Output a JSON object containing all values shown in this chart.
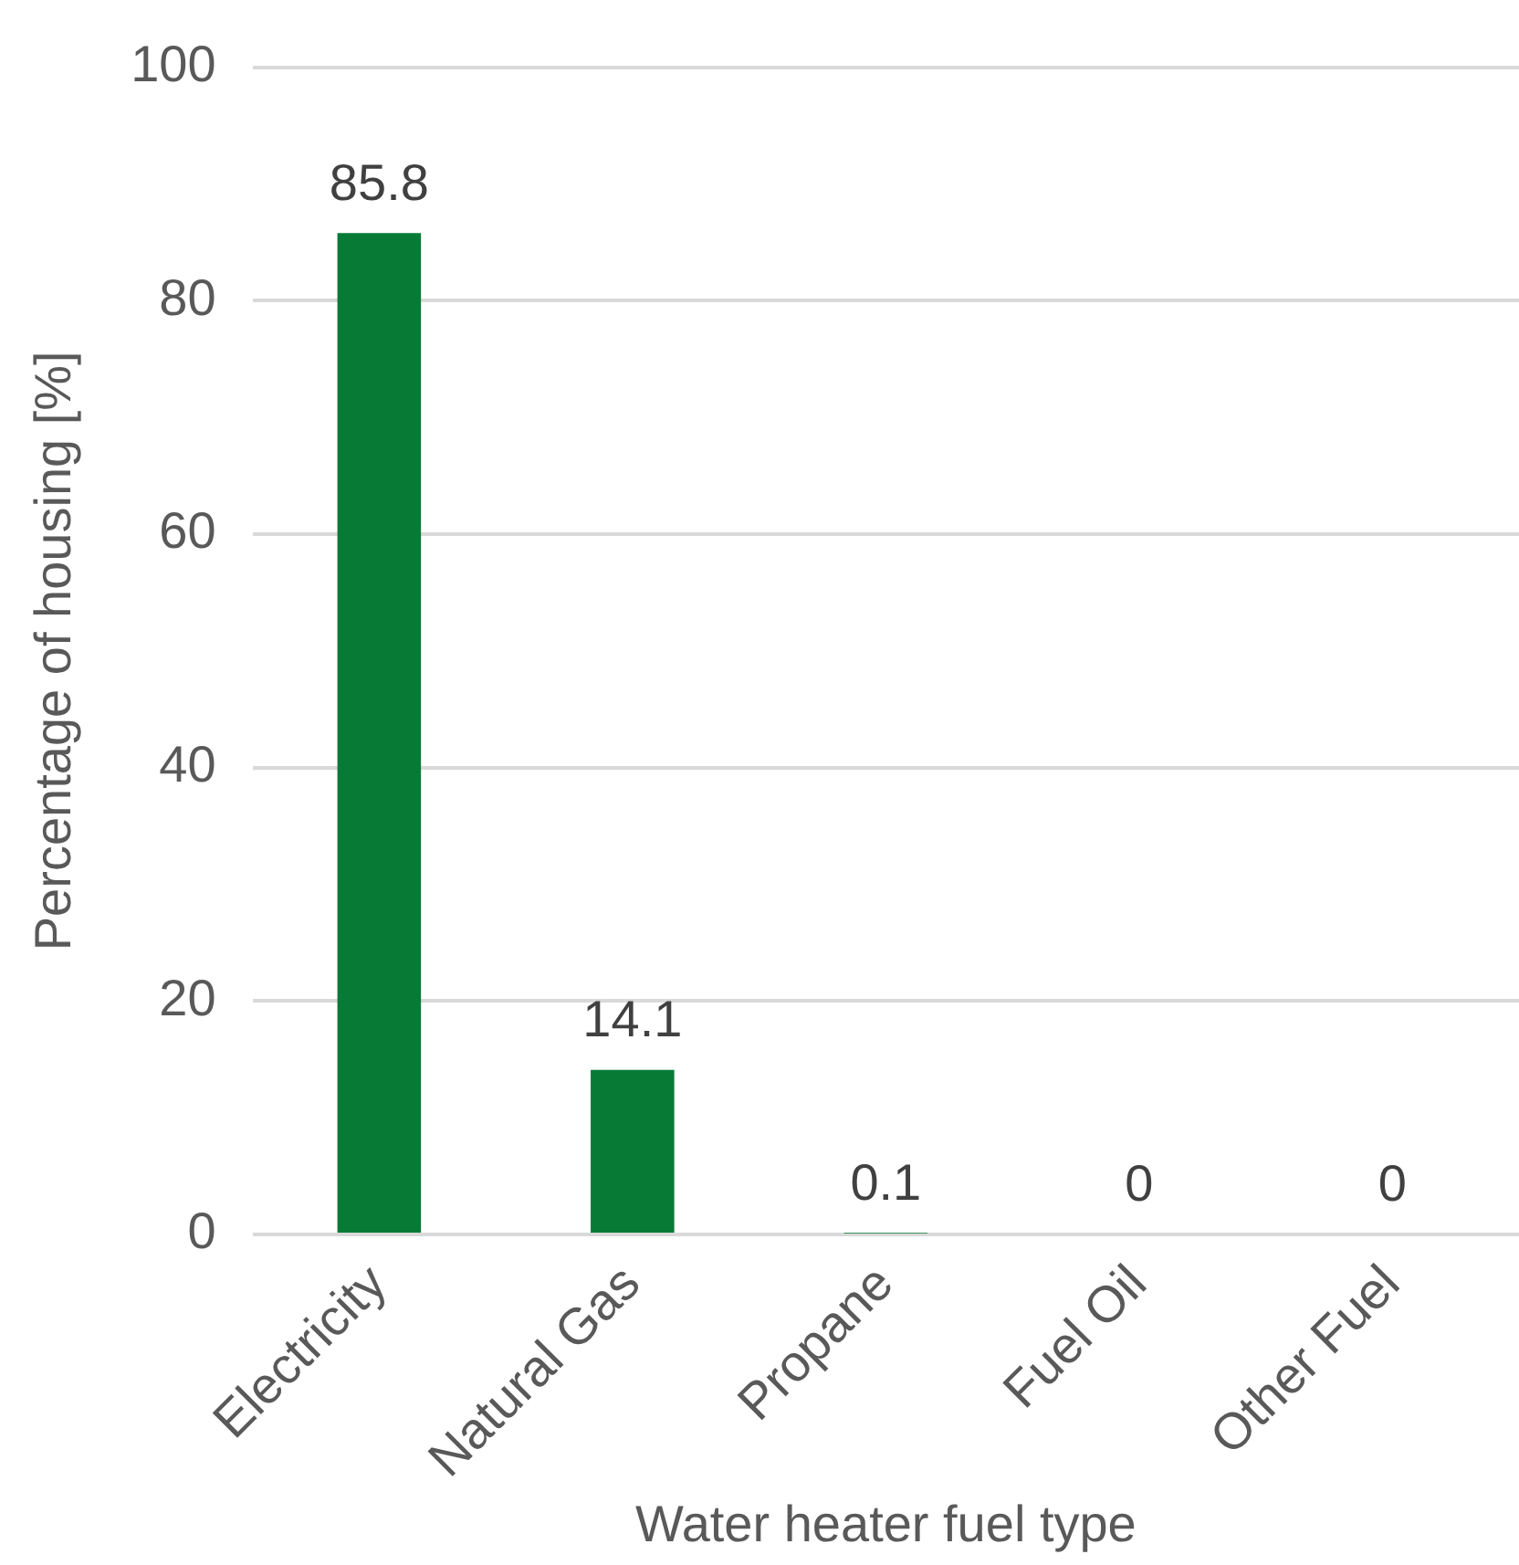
{
  "chart_data": {
    "type": "bar",
    "categories": [
      "Electricity",
      "Natural Gas",
      "Propane",
      "Fuel Oil",
      "Other Fuel"
    ],
    "values": [
      85.8,
      14.1,
      0.1,
      0,
      0
    ],
    "color": "#077a36",
    "xlabel": "Water heater fuel type",
    "ylabel": "Percentage of housing [%]",
    "ylim": [
      0,
      100
    ],
    "yticks": [
      0,
      20,
      40,
      60,
      80,
      100
    ],
    "grid": "y",
    "data_labels": true,
    "legend": false
  }
}
